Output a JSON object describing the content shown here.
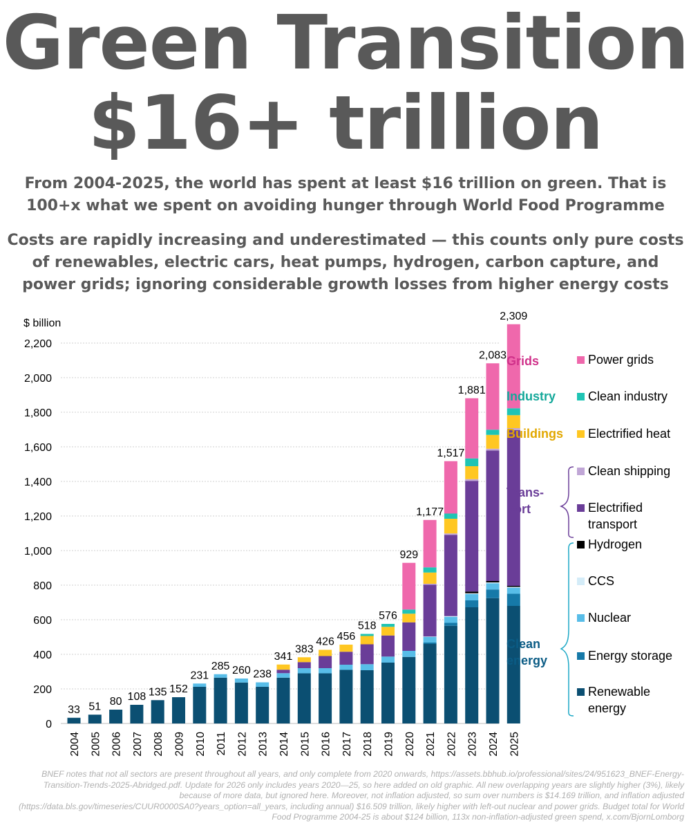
{
  "header": {
    "title_line1": "Green Transition",
    "title_line2": "$16+ trillion",
    "subtitle_1": "From 2004-2025, the world has spent at least $16 trillion on green. That is 100+x what we spent on avoiding hunger through World Food Programme",
    "subtitle_2": "Costs are rapidly increasing and underestimated — this counts only pure costs of renewables, electric cars, heat pumps, hydrogen, carbon capture, and power grids; ignoring considerable growth losses from higher energy costs"
  },
  "chart_data": {
    "type": "bar",
    "stacked": true,
    "ylabel": "$ billion",
    "ylim": [
      0,
      2300
    ],
    "yticks": [
      "0",
      "200",
      "400",
      "600",
      "800",
      "1,000",
      "1,200",
      "1,400",
      "1,600",
      "1,800",
      "2,000",
      "2,200"
    ],
    "grid": true,
    "legend_position": "right",
    "categories": [
      "2004",
      "2005",
      "2006",
      "2007",
      "2008",
      "2009",
      "2010",
      "2011",
      "2012",
      "2013",
      "2014",
      "2015",
      "2016",
      "2017",
      "2018",
      "2019",
      "2020",
      "2021",
      "2022",
      "2023",
      "2024",
      "2025"
    ],
    "totals": [
      "33",
      "51",
      "80",
      "108",
      "135",
      "152",
      "231",
      "285",
      "260",
      "238",
      "341",
      "383",
      "426",
      "456",
      "518",
      "576",
      "929",
      "1,177",
      "1,517",
      "1,881",
      "2,083",
      "2,309"
    ],
    "series": [
      {
        "name": "Renewable energy",
        "color": "#0b4f72",
        "values": [
          33,
          51,
          80,
          108,
          135,
          152,
          212,
          265,
          237,
          212,
          265,
          290,
          290,
          310,
          308,
          352,
          385,
          460,
          565,
          672,
          725,
          680
        ]
      },
      {
        "name": "Energy storage",
        "color": "#1679a8",
        "values": [
          0,
          0,
          0,
          0,
          0,
          0,
          0,
          0,
          0,
          0,
          0,
          0,
          0,
          0,
          0,
          0,
          0,
          8,
          17,
          40,
          50,
          70
        ]
      },
      {
        "name": "Nuclear",
        "color": "#58bde8",
        "values": [
          0,
          0,
          0,
          0,
          0,
          0,
          19,
          20,
          23,
          26,
          26,
          30,
          30,
          30,
          35,
          35,
          35,
          33,
          35,
          36,
          36,
          35
        ]
      },
      {
        "name": "CCS",
        "color": "#d4ecf8",
        "values": [
          0,
          0,
          0,
          0,
          0,
          0,
          0,
          0,
          0,
          0,
          0,
          0,
          0,
          0,
          0,
          0,
          0,
          2,
          4,
          5,
          5,
          5
        ]
      },
      {
        "name": "Hydrogen",
        "color": "#000000",
        "values": [
          0,
          0,
          0,
          0,
          0,
          0,
          0,
          0,
          0,
          0,
          0,
          0,
          0,
          0,
          0,
          0,
          0,
          0,
          0,
          10,
          8,
          6
        ]
      },
      {
        "name": "Electrified transport",
        "color": "#6a3d98",
        "values": [
          0,
          0,
          0,
          0,
          0,
          0,
          0,
          0,
          0,
          0,
          20,
          35,
          70,
          75,
          115,
          122,
          165,
          300,
          470,
          640,
          755,
          900
        ]
      },
      {
        "name": "Clean shipping",
        "color": "#c0a6d6",
        "values": [
          0,
          0,
          0,
          0,
          0,
          0,
          0,
          0,
          0,
          0,
          0,
          0,
          0,
          0,
          0,
          0,
          0,
          5,
          8,
          10,
          10,
          12
        ]
      },
      {
        "name": "Electrified heat",
        "color": "#ffc722",
        "values": [
          0,
          0,
          0,
          0,
          0,
          0,
          0,
          0,
          0,
          0,
          30,
          28,
          36,
          41,
          48,
          50,
          50,
          65,
          85,
          75,
          80,
          75
        ]
      },
      {
        "name": "Clean industry",
        "color": "#1fc4b4",
        "values": [
          0,
          0,
          0,
          0,
          0,
          0,
          0,
          0,
          0,
          0,
          0,
          0,
          0,
          0,
          12,
          17,
          24,
          30,
          30,
          45,
          30,
          40
        ]
      },
      {
        "name": "Power grids",
        "color": "#ef68ac",
        "values": [
          0,
          0,
          0,
          0,
          0,
          0,
          0,
          0,
          0,
          0,
          0,
          0,
          0,
          0,
          0,
          0,
          270,
          274,
          303,
          348,
          384,
          486
        ]
      }
    ],
    "legend_groups": [
      {
        "label": "Grids",
        "color": "#d0318a",
        "items": [
          "Power grids"
        ]
      },
      {
        "label": "Industry",
        "color": "#14a89a",
        "items": [
          "Clean industry"
        ]
      },
      {
        "label": "Buildings",
        "color": "#e2a800",
        "items": [
          "Electrified heat"
        ]
      },
      {
        "label": "Trans-\nport",
        "color": "#6a3d98",
        "items": [
          "Clean shipping",
          "Electrified\ntransport"
        ]
      },
      {
        "label": "Clean\nenergy",
        "color": "#0b5c85",
        "items": [
          "Hydrogen",
          "CCS",
          "Nuclear",
          "Energy storage",
          "Renewable\nenergy"
        ]
      }
    ]
  },
  "footnote": "BNEF notes that not all sectors are present throughout all years, and only complete from 2020 onwards, https://assets.bbhub.io/professional/sites/24/951623_BNEF-Energy-Transition-Trends-2025-Abridged.pdf. Update for 2026 only includes years 2020—25, so here added on old graphic. All new overlapping years are slightly higher (3%), likely because of more data, but ignored here. Moreover, not inflation adjusted, so sum over numbers is $14.169 trillion, and inflation adjusted (https://data.bls.gov/timeseries/CUUR0000SA0?years_option=all_years, including annual) $16.509 trillion, likely higher with left-out nuclear and power grids. Budget total for World Food Programme 2004-25 is about $124 billion, 113x non-inflation-adjusted green spend, x.com/BjornLomborg"
}
